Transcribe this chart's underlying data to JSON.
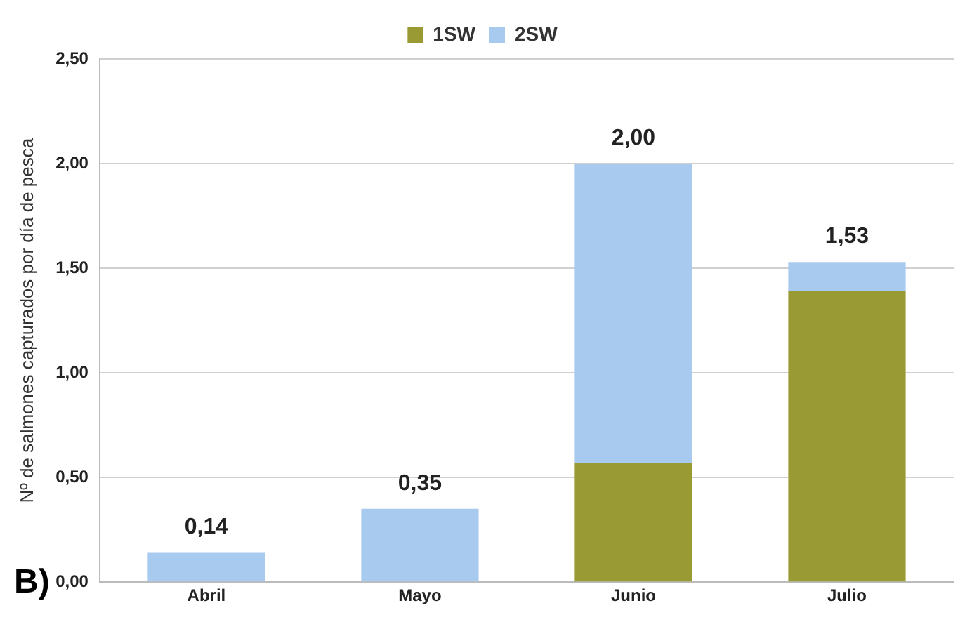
{
  "chart_data": {
    "type": "bar",
    "ylabel": "Nº de salmones capturados por día de pesca",
    "categories": [
      "Abril",
      "Mayo",
      "Junio",
      "Julio"
    ],
    "stacked": true,
    "series": [
      {
        "name": "1SW",
        "color": "#9a9a35",
        "values": [
          0,
          0,
          0.57,
          1.39
        ]
      },
      {
        "name": "2SW",
        "color": "#a8caee",
        "values": [
          0.14,
          0.35,
          1.43,
          0.14
        ]
      }
    ],
    "totals": [
      "0,14",
      "0,35",
      "2,00",
      "1,53"
    ],
    "ylim": [
      0,
      2.5
    ],
    "yticks": [
      {
        "value": 0,
        "label": "0,00"
      },
      {
        "value": 0.5,
        "label": "0,50"
      },
      {
        "value": 1,
        "label": "1,00"
      },
      {
        "value": 1.5,
        "label": "1,50"
      },
      {
        "value": 2,
        "label": "2,00"
      },
      {
        "value": 2.5,
        "label": "2,50"
      }
    ],
    "grid": "y",
    "legend": "top",
    "annotations": [
      "B)"
    ]
  }
}
